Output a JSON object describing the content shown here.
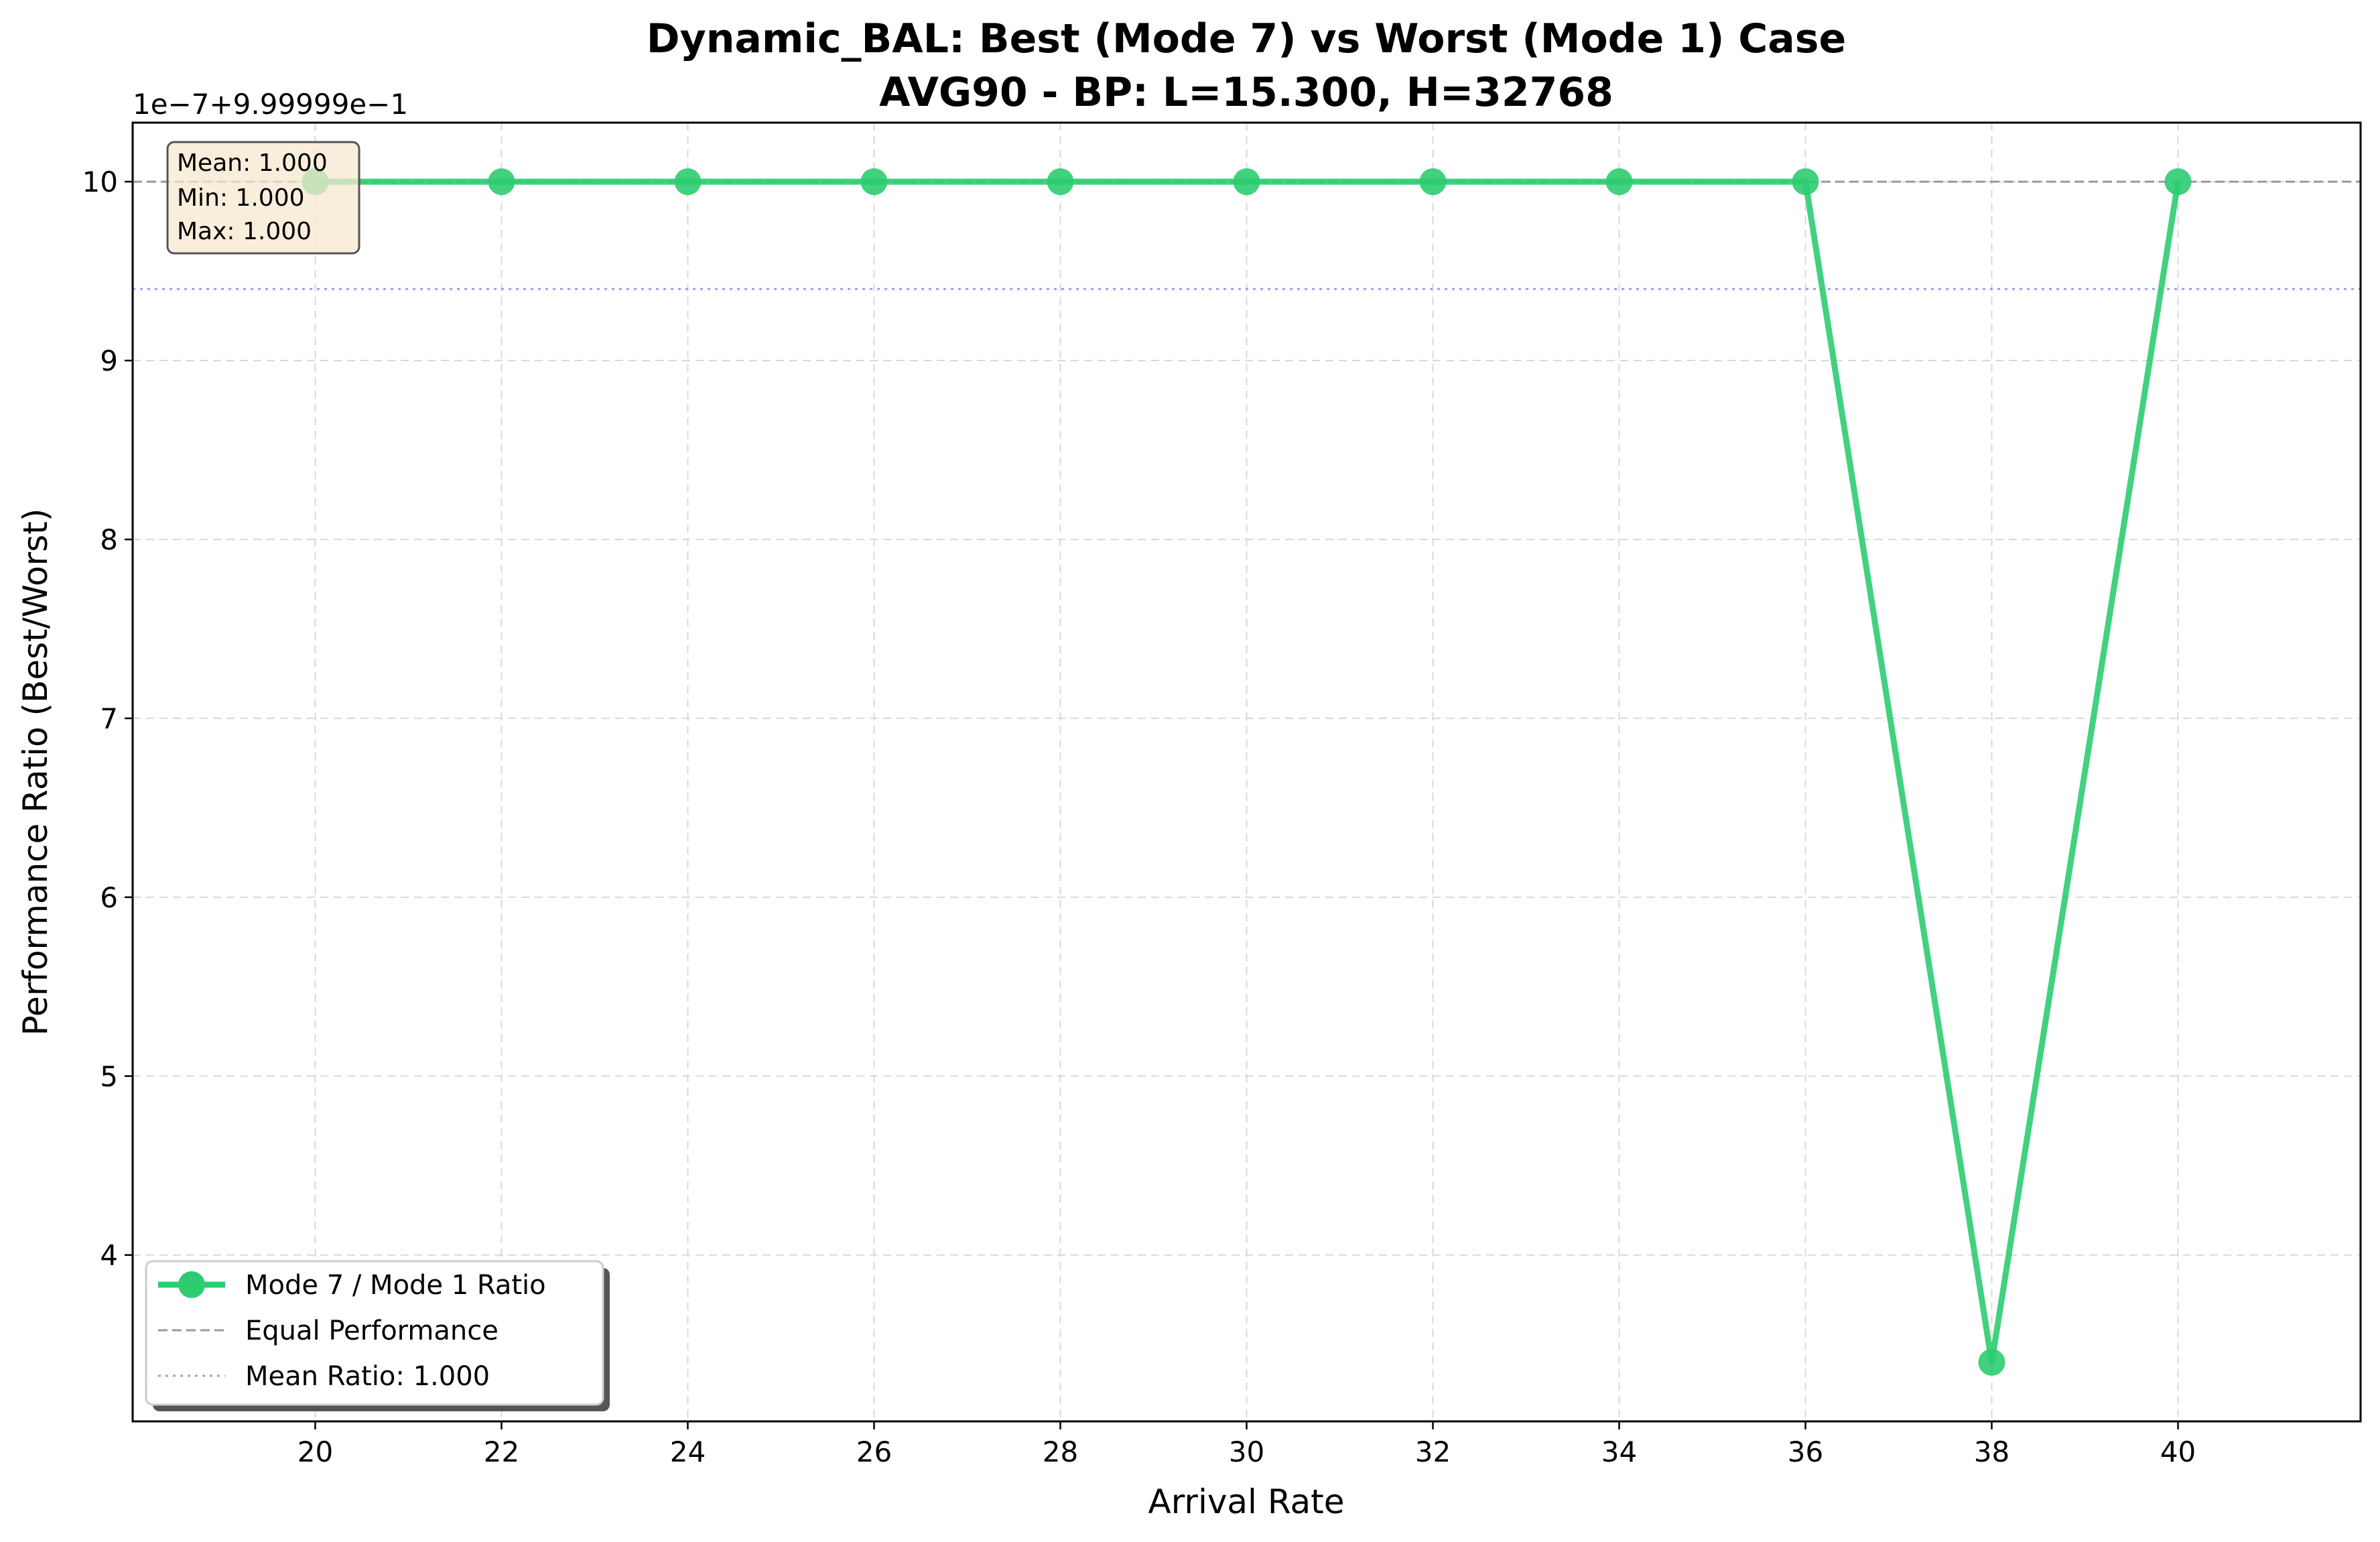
{
  "chart_data": {
    "type": "line",
    "title_line1": "Dynamic_BAL: Best (Mode 7) vs Worst (Mode 1) Case",
    "title_line2": "AVG90 - BP: L=15.300, H=32768",
    "xlabel": "Arrival Rate",
    "ylabel": "Performance Ratio (Best/Worst)",
    "y_offset_text": "1e−7+9.99999e−1",
    "x": [
      20,
      22,
      24,
      26,
      28,
      30,
      32,
      34,
      36,
      38,
      40
    ],
    "x_ticks": [
      20,
      22,
      24,
      26,
      28,
      30,
      32,
      34,
      36,
      38,
      40
    ],
    "xlim": [
      18.04,
      41.96
    ],
    "y_ticks": [
      4,
      5,
      6,
      7,
      8,
      9,
      10
    ],
    "ylim": [
      3.07,
      10.33
    ],
    "y_tick_units": "displayed value = 0.999999 + tick × 1e-7",
    "series": [
      {
        "name": "Mode 7 / Mode 1 Ratio",
        "color": "#2ecc71",
        "marker": "circle",
        "values": [
          10,
          10,
          10,
          10,
          10,
          10,
          10,
          10,
          10,
          3.4,
          10
        ]
      }
    ],
    "reference_lines": [
      {
        "name": "Equal Performance",
        "y": 10,
        "style": "dashed",
        "color": "#999999"
      },
      {
        "name": "Mean Ratio: 1.000",
        "y": 9.4,
        "style": "dotted",
        "color": "#9b9bf0"
      }
    ],
    "stats_box": [
      "Mean: 1.000",
      "Min: 1.000",
      "Max: 1.000"
    ],
    "stats_box_color": "#f6e8cf",
    "grid": true,
    "legend_position": "lower-left",
    "legend": [
      {
        "label": "Mode 7 / Mode 1 Ratio",
        "kind": "line-marker",
        "color": "#2ecc71"
      },
      {
        "label": "Equal Performance",
        "kind": "dashed",
        "color": "#999999"
      },
      {
        "label": "Mean Ratio: 1.000",
        "kind": "dotted",
        "color": "#9b9bf0"
      }
    ]
  }
}
